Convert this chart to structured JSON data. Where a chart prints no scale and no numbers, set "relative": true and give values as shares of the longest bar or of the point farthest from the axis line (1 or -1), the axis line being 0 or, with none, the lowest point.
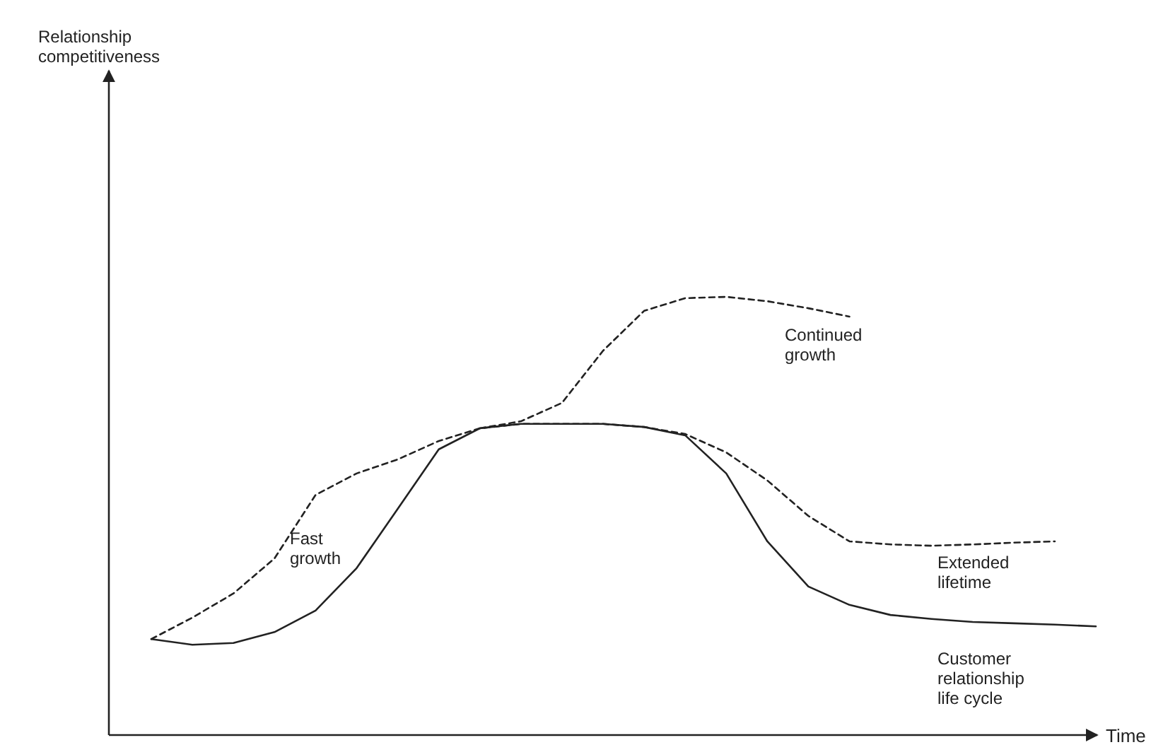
{
  "chart_data": {
    "type": "line",
    "relative": true,
    "xlabel": "Time",
    "marker": "none",
    "annotations": [
      "Extended lifetime",
      "Relationship competitiveness"
    ],
    "categories": [
      null,
      null,
      null,
      null,
      null,
      null,
      null,
      null,
      null,
      null,
      null,
      null,
      null,
      null,
      null,
      null,
      null,
      null,
      null,
      null,
      null,
      null,
      null,
      null
    ],
    "series": [
      {
        "name": "Fast growth",
        "color": "#222222",
        "line_style": "dashed",
        "values": [
          0.219,
          0.268,
          0.323,
          0.403,
          0.548,
          0.597,
          0.629,
          0.671,
          0.7,
          0.71,
          0.71,
          0.71,
          0.703,
          0.687,
          0.645,
          0.581,
          0.5,
          0.442,
          0.435,
          0.432,
          0.435,
          0.439,
          0.442,
          null
        ]
      },
      {
        "name": "Continued growth",
        "color": "#222222",
        "line_style": "dashed",
        "values": [
          null,
          null,
          null,
          null,
          null,
          null,
          null,
          null,
          0.7,
          0.716,
          0.758,
          0.877,
          0.968,
          0.997,
          1.0,
          0.99,
          0.974,
          0.955,
          null,
          null,
          null,
          null,
          null,
          null
        ]
      },
      {
        "name": "Customer relationship life cycle",
        "color": "#222222",
        "line_style": "solid",
        "values": [
          0.219,
          0.206,
          0.21,
          0.235,
          0.284,
          0.381,
          0.516,
          0.652,
          0.7,
          0.71,
          0.71,
          0.71,
          0.703,
          0.684,
          0.597,
          0.442,
          0.339,
          0.297,
          0.274,
          0.265,
          0.258,
          0.255,
          0.252,
          0.248
        ]
      }
    ]
  }
}
